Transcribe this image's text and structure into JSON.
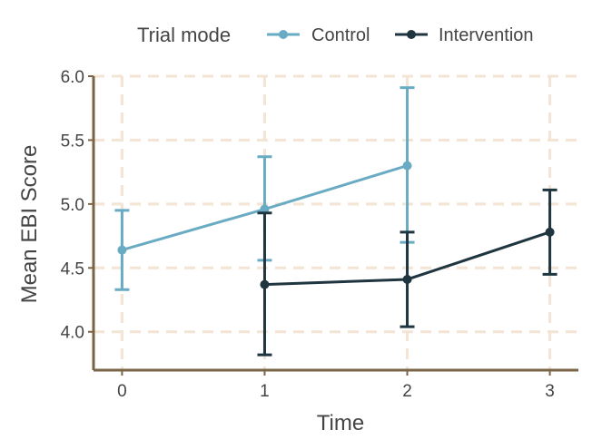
{
  "chart_data": {
    "type": "line",
    "title": "",
    "xlabel": "Time",
    "ylabel": "Mean EBI Score",
    "x_ticks": [
      "0",
      "1",
      "2",
      "3"
    ],
    "y_ticks": [
      "4.0",
      "4.5",
      "5.0",
      "5.5",
      "6.0"
    ],
    "xlim": [
      -0.2,
      3.2
    ],
    "ylim": [
      3.7,
      6.0
    ],
    "grid": true,
    "legend": {
      "title": "Trial mode",
      "position": "top",
      "entries": [
        "Control",
        "Intervention"
      ]
    },
    "series": [
      {
        "name": "Control",
        "color": "#6aabc4",
        "points": [
          {
            "x": 0,
            "y": 4.64,
            "lo": 4.33,
            "hi": 4.95
          },
          {
            "x": 1,
            "y": 4.96,
            "lo": 4.56,
            "hi": 5.37
          },
          {
            "x": 2,
            "y": 5.3,
            "lo": 4.7,
            "hi": 5.91
          }
        ]
      },
      {
        "name": "Intervention",
        "color": "#1f3540",
        "points": [
          {
            "x": 1,
            "y": 4.37,
            "lo": 3.82,
            "hi": 4.93
          },
          {
            "x": 2,
            "y": 4.41,
            "lo": 4.04,
            "hi": 4.78
          },
          {
            "x": 3,
            "y": 4.78,
            "lo": 4.45,
            "hi": 5.11
          }
        ]
      }
    ],
    "colors": {
      "axis": "#7a6448",
      "grid": "#f3e4d4"
    }
  }
}
